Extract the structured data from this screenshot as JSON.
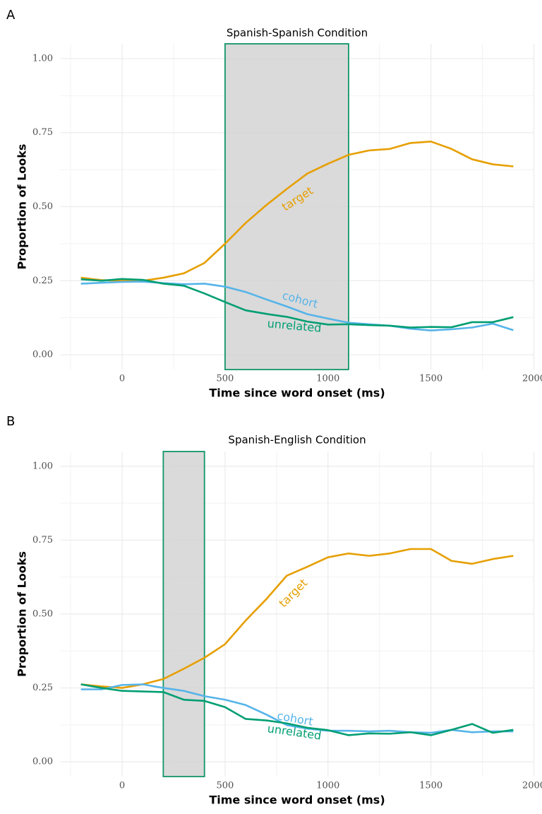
{
  "chart_data": [
    {
      "type": "line",
      "panel": "A",
      "title": "Spanish-Spanish Condition",
      "x_label": "Time since word onset (ms)",
      "y_label": "Proportion of Looks",
      "x": [
        -200,
        -100,
        0,
        100,
        200,
        300,
        400,
        500,
        600,
        700,
        800,
        900,
        1000,
        1100,
        1200,
        1300,
        1400,
        1500,
        1600,
        1700,
        1800,
        1900
      ],
      "series": [
        {
          "name": "target",
          "color": "#e69f00",
          "values": [
            0.26,
            0.252,
            0.25,
            0.25,
            0.26,
            0.275,
            0.31,
            0.375,
            0.445,
            0.505,
            0.56,
            0.612,
            0.645,
            0.675,
            0.69,
            0.695,
            0.715,
            0.72,
            0.695,
            0.66,
            0.643,
            0.636
          ]
        },
        {
          "name": "cohort",
          "color": "#56b4e9",
          "values": [
            0.24,
            0.243,
            0.246,
            0.247,
            0.242,
            0.238,
            0.24,
            0.23,
            0.212,
            0.187,
            0.163,
            0.137,
            0.122,
            0.108,
            0.103,
            0.098,
            0.088,
            0.082,
            0.086,
            0.092,
            0.105,
            0.083
          ]
        },
        {
          "name": "unrelated",
          "color": "#009e73",
          "values": [
            0.255,
            0.25,
            0.256,
            0.253,
            0.24,
            0.233,
            0.207,
            0.178,
            0.15,
            0.138,
            0.128,
            0.112,
            0.102,
            0.103,
            0.1,
            0.098,
            0.092,
            0.094,
            0.093,
            0.11,
            0.11,
            0.127
          ]
        }
      ],
      "highlight": [
        500,
        1100
      ],
      "xlim": [
        -300,
        2000
      ],
      "xticks": [
        0,
        500,
        1000,
        1500,
        2000
      ],
      "ylim": [
        -0.05,
        1.05
      ],
      "yticks": [
        {
          "value": 0,
          "label": "0.00"
        },
        {
          "value": 0.25,
          "label": "0.25"
        },
        {
          "value": 0.5,
          "label": "0.50"
        },
        {
          "value": 0.75,
          "label": "0.75"
        },
        {
          "value": 1,
          "label": "1.00"
        }
      ],
      "grid": true
    },
    {
      "type": "line",
      "panel": "B",
      "title": "Spanish-English Condition",
      "x_label": "Time since word onset (ms)",
      "y_label": "Proportion of Looks",
      "x": [
        -200,
        -100,
        0,
        100,
        200,
        300,
        400,
        500,
        600,
        700,
        800,
        900,
        1000,
        1100,
        1200,
        1300,
        1400,
        1500,
        1600,
        1700,
        1800,
        1900
      ],
      "series": [
        {
          "name": "target",
          "color": "#e69f00",
          "values": [
            0.262,
            0.255,
            0.25,
            0.262,
            0.28,
            0.315,
            0.352,
            0.398,
            0.478,
            0.55,
            0.63,
            0.66,
            0.692,
            0.705,
            0.697,
            0.705,
            0.72,
            0.72,
            0.68,
            0.67,
            0.686,
            0.697
          ]
        },
        {
          "name": "cohort",
          "color": "#56b4e9",
          "values": [
            0.245,
            0.245,
            0.26,
            0.262,
            0.25,
            0.24,
            0.222,
            0.21,
            0.192,
            0.16,
            0.124,
            0.112,
            0.105,
            0.105,
            0.103,
            0.105,
            0.1,
            0.098,
            0.108,
            0.1,
            0.103,
            0.103
          ]
        },
        {
          "name": "unrelated",
          "color": "#009e73",
          "values": [
            0.262,
            0.25,
            0.24,
            0.238,
            0.236,
            0.21,
            0.206,
            0.185,
            0.145,
            0.14,
            0.13,
            0.115,
            0.107,
            0.09,
            0.096,
            0.095,
            0.1,
            0.09,
            0.108,
            0.128,
            0.098,
            0.108
          ]
        }
      ],
      "highlight": [
        200,
        400
      ],
      "xlim": [
        -300,
        2000
      ],
      "xticks": [
        0,
        500,
        1000,
        1500,
        2000
      ],
      "ylim": [
        -0.05,
        1.05
      ],
      "yticks": [
        {
          "value": 0,
          "label": "0.00"
        },
        {
          "value": 0.25,
          "label": "0.25"
        },
        {
          "value": 0.5,
          "label": "0.50"
        },
        {
          "value": 0.75,
          "label": "0.75"
        },
        {
          "value": 1,
          "label": "1.00"
        }
      ],
      "grid": true
    }
  ]
}
